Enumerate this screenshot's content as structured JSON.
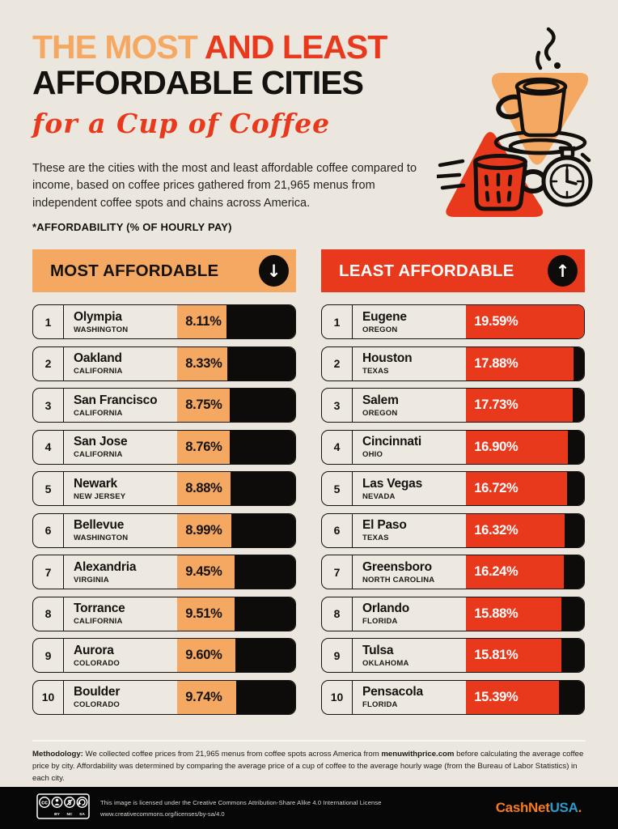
{
  "title": {
    "part1": "THE MOST ",
    "part2": "AND LEAST",
    "line2": "AFFORDABLE CITIES",
    "script": "for a Cup of Coffee"
  },
  "intro": "These are the cities with the most and least affordable coffee compared to income, based on coffee prices gathered from 21,965 menus from independent coffee spots and chains across America.",
  "note": "*AFFORDABILITY (% OF HOURLY PAY)",
  "most": {
    "header": "MOST AFFORDABLE",
    "arrow": "↓",
    "rows": [
      {
        "rank": "1",
        "city": "Olympia",
        "state": "WASHINGTON",
        "value": "8.11%"
      },
      {
        "rank": "2",
        "city": "Oakland",
        "state": "CALIFORNIA",
        "value": "8.33%"
      },
      {
        "rank": "3",
        "city": "San Francisco",
        "state": "CALIFORNIA",
        "value": "8.75%"
      },
      {
        "rank": "4",
        "city": "San Jose",
        "state": "CALIFORNIA",
        "value": "8.76%"
      },
      {
        "rank": "5",
        "city": "Newark",
        "state": "NEW JERSEY",
        "value": "8.88%"
      },
      {
        "rank": "6",
        "city": "Bellevue",
        "state": "WASHINGTON",
        "value": "8.99%"
      },
      {
        "rank": "7",
        "city": "Alexandria",
        "state": "VIRGINIA",
        "value": "9.45%"
      },
      {
        "rank": "8",
        "city": "Torrance",
        "state": "CALIFORNIA",
        "value": "9.51%"
      },
      {
        "rank": "9",
        "city": "Aurora",
        "state": "COLORADO",
        "value": "9.60%"
      },
      {
        "rank": "10",
        "city": "Boulder",
        "state": "COLORADO",
        "value": "9.74%"
      }
    ]
  },
  "least": {
    "header": "LEAST AFFORDABLE",
    "arrow": "↑",
    "rows": [
      {
        "rank": "1",
        "city": "Eugene",
        "state": "OREGON",
        "value": "19.59%"
      },
      {
        "rank": "2",
        "city": "Houston",
        "state": "TEXAS",
        "value": "17.88%"
      },
      {
        "rank": "3",
        "city": "Salem",
        "state": "OREGON",
        "value": "17.73%"
      },
      {
        "rank": "4",
        "city": "Cincinnati",
        "state": "OHIO",
        "value": "16.90%"
      },
      {
        "rank": "5",
        "city": "Las Vegas",
        "state": "NEVADA",
        "value": "16.72%"
      },
      {
        "rank": "6",
        "city": "El Paso",
        "state": "TEXAS",
        "value": "16.32%"
      },
      {
        "rank": "7",
        "city": "Greensboro",
        "state": "NORTH CAROLINA",
        "value": "16.24%"
      },
      {
        "rank": "8",
        "city": "Orlando",
        "state": "FLORIDA",
        "value": "15.88%"
      },
      {
        "rank": "9",
        "city": "Tulsa",
        "state": "OKLAHOMA",
        "value": "15.81%"
      },
      {
        "rank": "10",
        "city": "Pensacola",
        "state": "FLORIDA",
        "value": "15.39%"
      }
    ]
  },
  "methodology": {
    "label": "Methodology:",
    "text1": " We collected coffee prices from 21,965 menus from coffee spots across America from ",
    "link": "menuwithprice.com",
    "text2": " before calculating the average coffee price by city. Affordability was determined by comparing the average price of a cup of coffee to the average hourly wage (from the Bureau of Labor Statistics) in each city."
  },
  "footer": {
    "license_line1": "This image is licensed under the Creative Commons Attribution-Share Alike 4.0 International License",
    "license_line2": "www.creativecommons.org/licenses/by-sa/4.0",
    "cc_labels": [
      "BY",
      "NC",
      "SA"
    ],
    "brand": {
      "part1": "CashNet",
      "part2": "USA",
      "part3": "."
    }
  },
  "colors": {
    "background": "#ECE7DE",
    "peach": "#F5A861",
    "red": "#E8391D",
    "black": "#0D0C0A",
    "brand_orange": "#F47B20",
    "brand_blue": "#2D9BC9"
  },
  "chart_data": {
    "type": "bar",
    "title": "The Most and Least Affordable Cities for a Cup of Coffee",
    "ylabel": "Affordability (% of hourly pay)",
    "max_value": 19.59,
    "source_menus": 21965,
    "series": [
      {
        "name": "Most affordable",
        "categories": [
          "Olympia, Washington",
          "Oakland, California",
          "San Francisco, California",
          "San Jose, California",
          "Newark, New Jersey",
          "Bellevue, Washington",
          "Alexandria, Virginia",
          "Torrance, California",
          "Aurora, Colorado",
          "Boulder, Colorado"
        ],
        "values": [
          8.11,
          8.33,
          8.75,
          8.76,
          8.88,
          8.99,
          9.45,
          9.51,
          9.6,
          9.74
        ]
      },
      {
        "name": "Least affordable",
        "categories": [
          "Eugene, Oregon",
          "Houston, Texas",
          "Salem, Oregon",
          "Cincinnati, Ohio",
          "Las Vegas, Nevada",
          "El Paso, Texas",
          "Greensboro, North Carolina",
          "Orlando, Florida",
          "Tulsa, Oklahoma",
          "Pensacola, Florida"
        ],
        "values": [
          19.59,
          17.88,
          17.73,
          16.9,
          16.72,
          16.32,
          16.24,
          15.88,
          15.81,
          15.39
        ]
      }
    ]
  }
}
